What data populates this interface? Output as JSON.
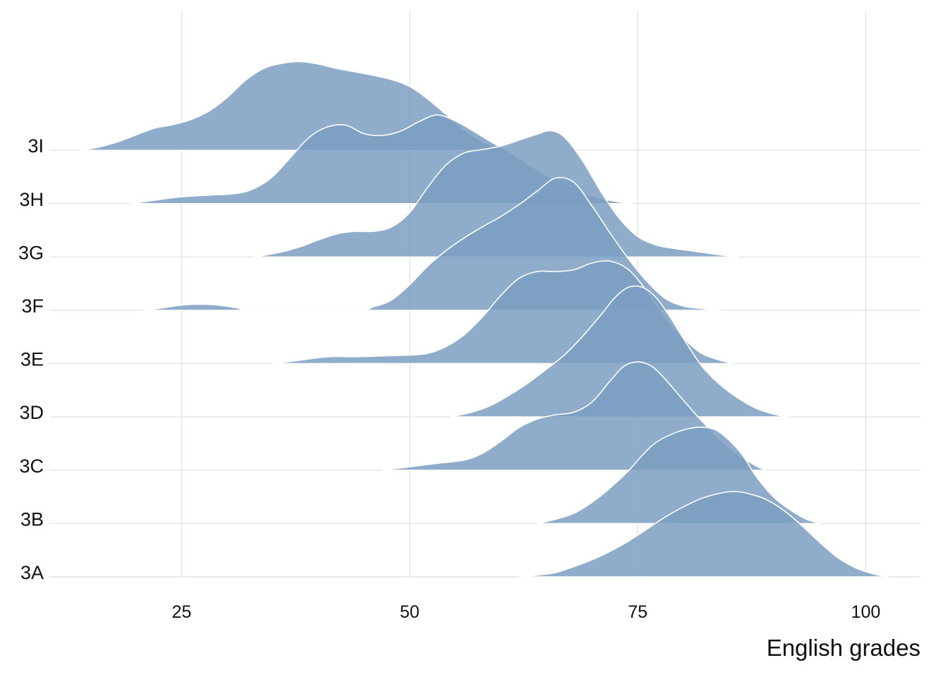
{
  "chart_data": {
    "type": "area",
    "subtype": "ridgeline-density",
    "title": "",
    "xlabel": "English grades",
    "ylabel": "",
    "xlim": [
      10.5,
      106
    ],
    "x_ticks": [
      25,
      50,
      75,
      100
    ],
    "x_tick_labels": [
      "25",
      "50",
      "75",
      "100"
    ],
    "grid": "vertical and horizontal major gridlines",
    "legend": "none",
    "fill_color": "#7b9dc2",
    "fill_opacity": 0.85,
    "outline_color": "#ffffff",
    "ridge_scale_rows": 1.6,
    "categories": [
      "3A",
      "3B",
      "3C",
      "3D",
      "3E",
      "3F",
      "3G",
      "3H",
      "3I"
    ],
    "series": [
      {
        "name": "3A",
        "x": [
          62,
          64,
          66,
          68,
          70,
          72,
          74,
          76,
          78,
          80,
          82,
          84,
          85.5,
          87,
          89,
          91,
          93,
          95,
          97,
          99,
          101,
          102.5
        ],
        "y": [
          0.0,
          0.02,
          0.05,
          0.12,
          0.2,
          0.3,
          0.42,
          0.56,
          0.7,
          0.82,
          0.92,
          0.98,
          1.0,
          0.98,
          0.91,
          0.78,
          0.6,
          0.4,
          0.22,
          0.1,
          0.03,
          0.0
        ]
      },
      {
        "name": "3B",
        "x": [
          64,
          66,
          68,
          70,
          72,
          74,
          75.5,
          77,
          79,
          80.5,
          82,
          83.5,
          85,
          86.5,
          88,
          90,
          92,
          93.5,
          95
        ],
        "y": [
          0.0,
          0.05,
          0.12,
          0.25,
          0.42,
          0.62,
          0.8,
          0.95,
          1.06,
          1.11,
          1.13,
          1.1,
          0.98,
          0.8,
          0.55,
          0.3,
          0.14,
          0.05,
          0.0
        ]
      },
      {
        "name": "3C",
        "x": [
          47,
          50,
          53,
          56,
          58,
          60,
          62,
          64,
          66,
          68,
          70,
          72,
          73.5,
          75,
          76.5,
          78,
          80,
          82,
          84,
          86,
          88,
          89
        ],
        "y": [
          0.0,
          0.04,
          0.08,
          0.12,
          0.2,
          0.34,
          0.5,
          0.6,
          0.65,
          0.68,
          0.8,
          1.05,
          1.22,
          1.27,
          1.22,
          1.07,
          0.82,
          0.58,
          0.36,
          0.18,
          0.05,
          0.0
        ]
      },
      {
        "name": "3D",
        "x": [
          54.5,
          57,
          59,
          61,
          63,
          65,
          67,
          69,
          71,
          72.5,
          74,
          75.5,
          77,
          78.5,
          80,
          82,
          84,
          86,
          88,
          90,
          91.5
        ],
        "y": [
          0.0,
          0.06,
          0.14,
          0.26,
          0.4,
          0.56,
          0.73,
          0.95,
          1.2,
          1.4,
          1.52,
          1.52,
          1.4,
          1.18,
          0.92,
          0.6,
          0.38,
          0.22,
          0.1,
          0.03,
          0.0
        ]
      },
      {
        "name": "3E",
        "x": [
          35,
          38,
          41,
          44,
          47,
          50,
          52,
          54,
          56,
          58,
          60,
          62,
          64,
          66,
          68,
          70,
          72,
          74,
          76,
          78,
          80,
          82,
          84,
          85.5
        ],
        "y": [
          0.0,
          0.04,
          0.08,
          0.08,
          0.09,
          0.1,
          0.12,
          0.2,
          0.34,
          0.55,
          0.8,
          1.0,
          1.08,
          1.08,
          1.1,
          1.18,
          1.2,
          1.1,
          0.85,
          0.55,
          0.3,
          0.12,
          0.04,
          0.0
        ]
      },
      {
        "name": "3F",
        "x": [
          21,
          23,
          25,
          27,
          29,
          31,
          33,
          44,
          46,
          48,
          50,
          52,
          54,
          56,
          58,
          60,
          62,
          64,
          66,
          68,
          70,
          72,
          74,
          76,
          78,
          80,
          82,
          84
        ],
        "y": [
          0.0,
          0.03,
          0.06,
          0.07,
          0.06,
          0.03,
          0.0,
          0.0,
          0.04,
          0.12,
          0.3,
          0.52,
          0.7,
          0.85,
          0.98,
          1.1,
          1.24,
          1.4,
          1.55,
          1.5,
          1.22,
          0.9,
          0.6,
          0.34,
          0.14,
          0.05,
          0.02,
          0.0
        ]
      },
      {
        "name": "3G",
        "x": [
          33,
          36,
          38,
          40,
          42,
          44,
          46,
          48,
          50,
          52,
          54,
          56,
          58,
          60,
          62,
          64,
          65.5,
          67,
          69,
          71,
          73,
          75,
          77,
          79,
          81,
          83,
          85,
          86
        ],
        "y": [
          0.0,
          0.06,
          0.12,
          0.2,
          0.27,
          0.3,
          0.3,
          0.35,
          0.52,
          0.82,
          1.08,
          1.22,
          1.26,
          1.3,
          1.37,
          1.44,
          1.48,
          1.4,
          1.12,
          0.76,
          0.45,
          0.24,
          0.14,
          0.1,
          0.07,
          0.04,
          0.01,
          0.0
        ]
      },
      {
        "name": "3H",
        "x": [
          19.5,
          22,
          25,
          28,
          31,
          33,
          35,
          37,
          39,
          41,
          43,
          45,
          47,
          49,
          51,
          53,
          55,
          57,
          59,
          61,
          63,
          65,
          67,
          69,
          71,
          73,
          74.5
        ],
        "y": [
          0.0,
          0.04,
          0.08,
          0.1,
          0.12,
          0.18,
          0.32,
          0.55,
          0.78,
          0.9,
          0.92,
          0.82,
          0.8,
          0.85,
          0.96,
          1.04,
          0.97,
          0.85,
          0.72,
          0.6,
          0.46,
          0.33,
          0.22,
          0.12,
          0.06,
          0.02,
          0.0
        ]
      },
      {
        "name": "3I",
        "x": [
          14,
          16,
          18,
          20,
          22,
          24,
          26,
          28,
          30,
          32,
          34,
          36,
          38,
          40,
          42,
          44,
          46,
          48,
          50,
          52,
          54,
          56,
          58,
          60.5
        ],
        "y": [
          0.0,
          0.04,
          0.1,
          0.18,
          0.26,
          0.3,
          0.36,
          0.46,
          0.62,
          0.82,
          0.96,
          1.02,
          1.04,
          1.01,
          0.96,
          0.92,
          0.88,
          0.83,
          0.75,
          0.6,
          0.42,
          0.24,
          0.1,
          0.0
        ]
      }
    ]
  }
}
